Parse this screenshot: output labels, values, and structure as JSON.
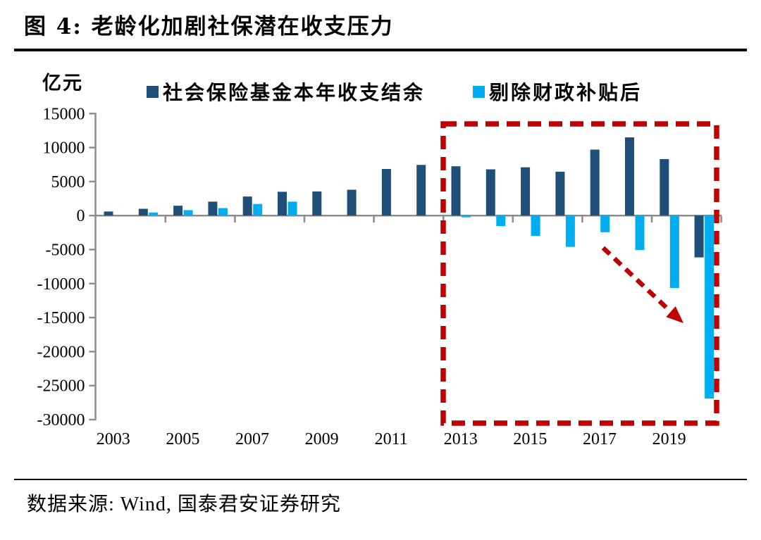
{
  "header": {
    "title": "图 4:  老龄化加剧社保潜在收支压力"
  },
  "chart_data": {
    "type": "bar",
    "title": "图 4: 老龄化加剧社保潜在收支压力",
    "unit_label": "亿元",
    "categories": [
      "2003",
      "2004",
      "2005",
      "2006",
      "2007",
      "2008",
      "2009",
      "2010",
      "2011",
      "2012",
      "2013",
      "2014",
      "2015",
      "2016",
      "2017",
      "2018",
      "2019",
      "2020"
    ],
    "series": [
      {
        "name": "社会保险基金本年收支结余",
        "color": "#1F4E79",
        "values": [
          600,
          1000,
          1450,
          2050,
          2800,
          3500,
          3550,
          3800,
          6850,
          7450,
          7250,
          6800,
          7100,
          6450,
          9700,
          11500,
          8300,
          -6150
        ]
      },
      {
        "name": "剔除财政补贴后",
        "color": "#00AEEF",
        "values": [
          0,
          450,
          800,
          1100,
          1700,
          2050,
          0,
          0,
          0,
          0,
          -250,
          -1550,
          -3000,
          -4600,
          -2450,
          -5050,
          -10650,
          -26900
        ]
      }
    ],
    "ylim": [
      -30000,
      15000
    ],
    "ytick_values": [
      15000,
      10000,
      5000,
      0,
      -5000,
      -10000,
      -15000,
      -20000,
      -25000,
      -30000
    ],
    "xtick_labels": [
      "2003",
      "2005",
      "2007",
      "2009",
      "2011",
      "2013",
      "2015",
      "2017",
      "2019"
    ],
    "grid": false,
    "legend_position": "top",
    "axis_color": "#8C8C8C",
    "annotations": {
      "highlight_box": {
        "covers_years": "2013-2020",
        "color": "#C00000",
        "style": "dashed"
      },
      "arrow": {
        "direction": "down-right",
        "color": "#C00000",
        "style": "dashed"
      }
    }
  },
  "footer": {
    "source": "数据来源: Wind, 国泰君安证券研究"
  }
}
